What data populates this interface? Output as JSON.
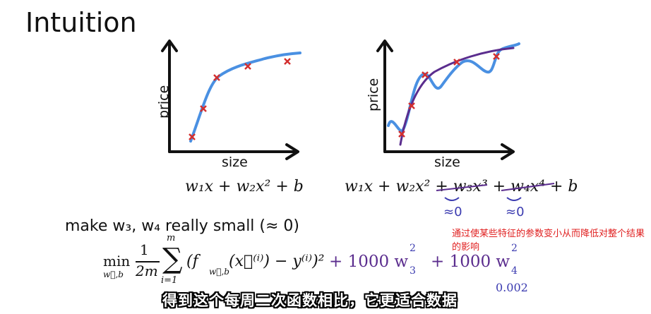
{
  "slide": {
    "title": "Intuition",
    "left_chart": {
      "ylabel": "price",
      "xlabel": "size",
      "formula": "w₁x + w₂x² + b"
    },
    "right_chart": {
      "ylabel": "price",
      "xlabel": "size",
      "formula": "w₁x + w₂x² + w₃x³ + w₄x⁴ + b"
    },
    "annotations": {
      "approx_zero_1": "≈0",
      "approx_zero_2": "≈0"
    },
    "make_small": "make w₃, w₄ really small (≈ 0)",
    "cost_formula": {
      "min": "min",
      "min_sub": "w⃗,b",
      "frac_num": "1",
      "frac_den": "2m",
      "sum_top": "m",
      "sum_bottom": "i=1",
      "body": "(f",
      "body_sub": "w⃗,b",
      "body_rest": "(x⃗⁽ⁱ⁾) − y⁽ⁱ⁾)²",
      "penalty_1": "+ 1000 w",
      "penalty_1_sub": "3",
      "penalty_1_sup": "2",
      "penalty_2": "+ 1000 w",
      "penalty_2_sub": "4",
      "penalty_2_sup": "2",
      "penalty_2_value": "0.002"
    },
    "note": "通过使某些特征的参数变小从而降低对整个结果的影响",
    "subtitle": "得到这个每周二次函数相比，它更适合数据"
  },
  "colors": {
    "fit": "#4a90e2",
    "overfit": "#5b2d8e",
    "marker": "#d32f2f",
    "handwriting": "#3b3bb0",
    "note": "#e02020"
  }
}
